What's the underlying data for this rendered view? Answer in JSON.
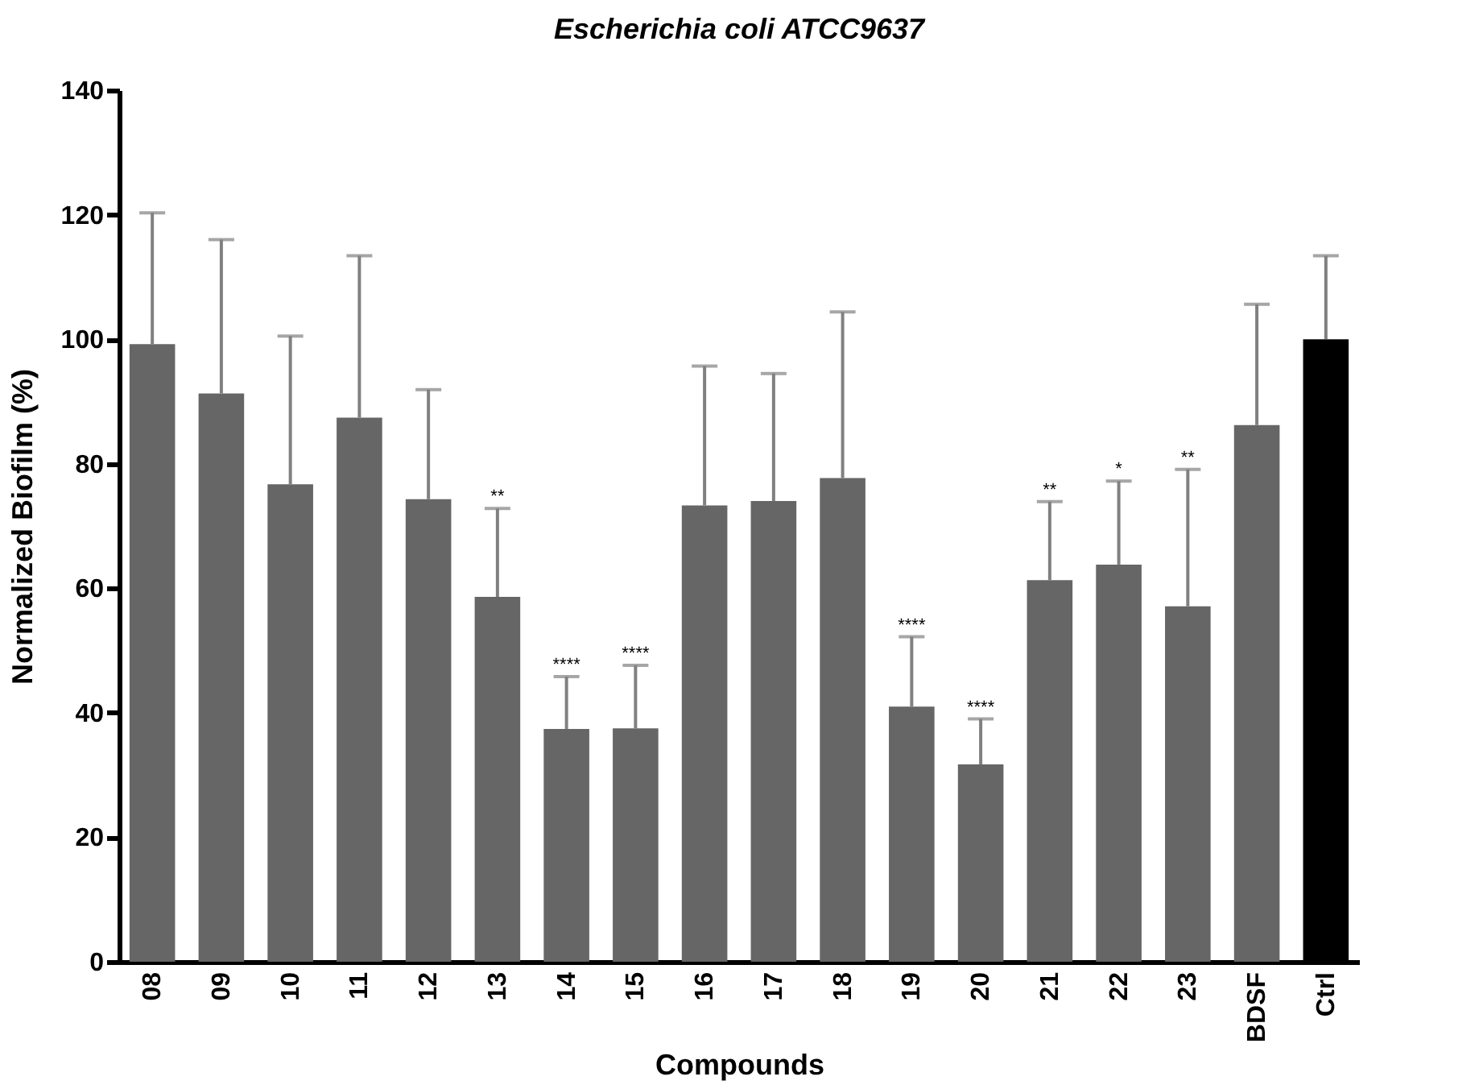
{
  "chart_data": {
    "type": "bar",
    "title": "Escherichia coli ATCC9637",
    "xlabel": "Compounds",
    "ylabel": "Normalized Biofilm (%)",
    "categories": [
      "08",
      "09",
      "10",
      "11",
      "12",
      "13",
      "14",
      "15",
      "16",
      "17",
      "18",
      "19",
      "20",
      "21",
      "22",
      "23",
      "BDSF",
      "Ctrl"
    ],
    "values": [
      99.2,
      91.3,
      76.7,
      87.4,
      74.3,
      58.6,
      37.4,
      37.5,
      73.3,
      74,
      77.7,
      41,
      31.7,
      61.3,
      63.8,
      57.1,
      86.2,
      100
    ],
    "colors": [
      "#666666",
      "#666666",
      "#666666",
      "#666666",
      "#666666",
      "#666666",
      "#666666",
      "#666666",
      "#666666",
      "#666666",
      "#666666",
      "#666666",
      "#666666",
      "#666666",
      "#666666",
      "#666666",
      "#666666",
      "#000000"
    ],
    "errors": [
      [
        99.2,
        120.3
      ],
      [
        91.3,
        116
      ],
      [
        76.7,
        100.5
      ],
      [
        87.4,
        113.4
      ],
      [
        74.3,
        91.9
      ],
      [
        58.6,
        72.8
      ],
      [
        37.4,
        45.8
      ],
      [
        37.5,
        47.6
      ],
      [
        73.3,
        95.7
      ],
      [
        74,
        94.5
      ],
      [
        77.7,
        104.4
      ],
      [
        41,
        52.2
      ],
      [
        31.7,
        39
      ],
      [
        61.3,
        73.9
      ],
      [
        63.8,
        77.2
      ],
      [
        57.1,
        79.1
      ],
      [
        86.2,
        105.6
      ],
      [
        100,
        113.4
      ]
    ],
    "annotations": [
      {
        "text": "**",
        "x": "13",
        "y": 72.8
      },
      {
        "text": "****",
        "x": "14",
        "y": 45.8
      },
      {
        "text": "****",
        "x": "15",
        "y": 47.6
      },
      {
        "text": "****",
        "x": "19",
        "y": 52.2
      },
      {
        "text": "****",
        "x": "20",
        "y": 39
      },
      {
        "text": "**",
        "x": "21",
        "y": 73.9
      },
      {
        "text": "*",
        "x": "22",
        "y": 77.2
      },
      {
        "text": "**",
        "x": "23",
        "y": 79.1
      }
    ],
    "ylim": [
      0,
      140
    ],
    "yticks": [
      0,
      20,
      40,
      60,
      80,
      100,
      120,
      140
    ],
    "grid": false
  }
}
